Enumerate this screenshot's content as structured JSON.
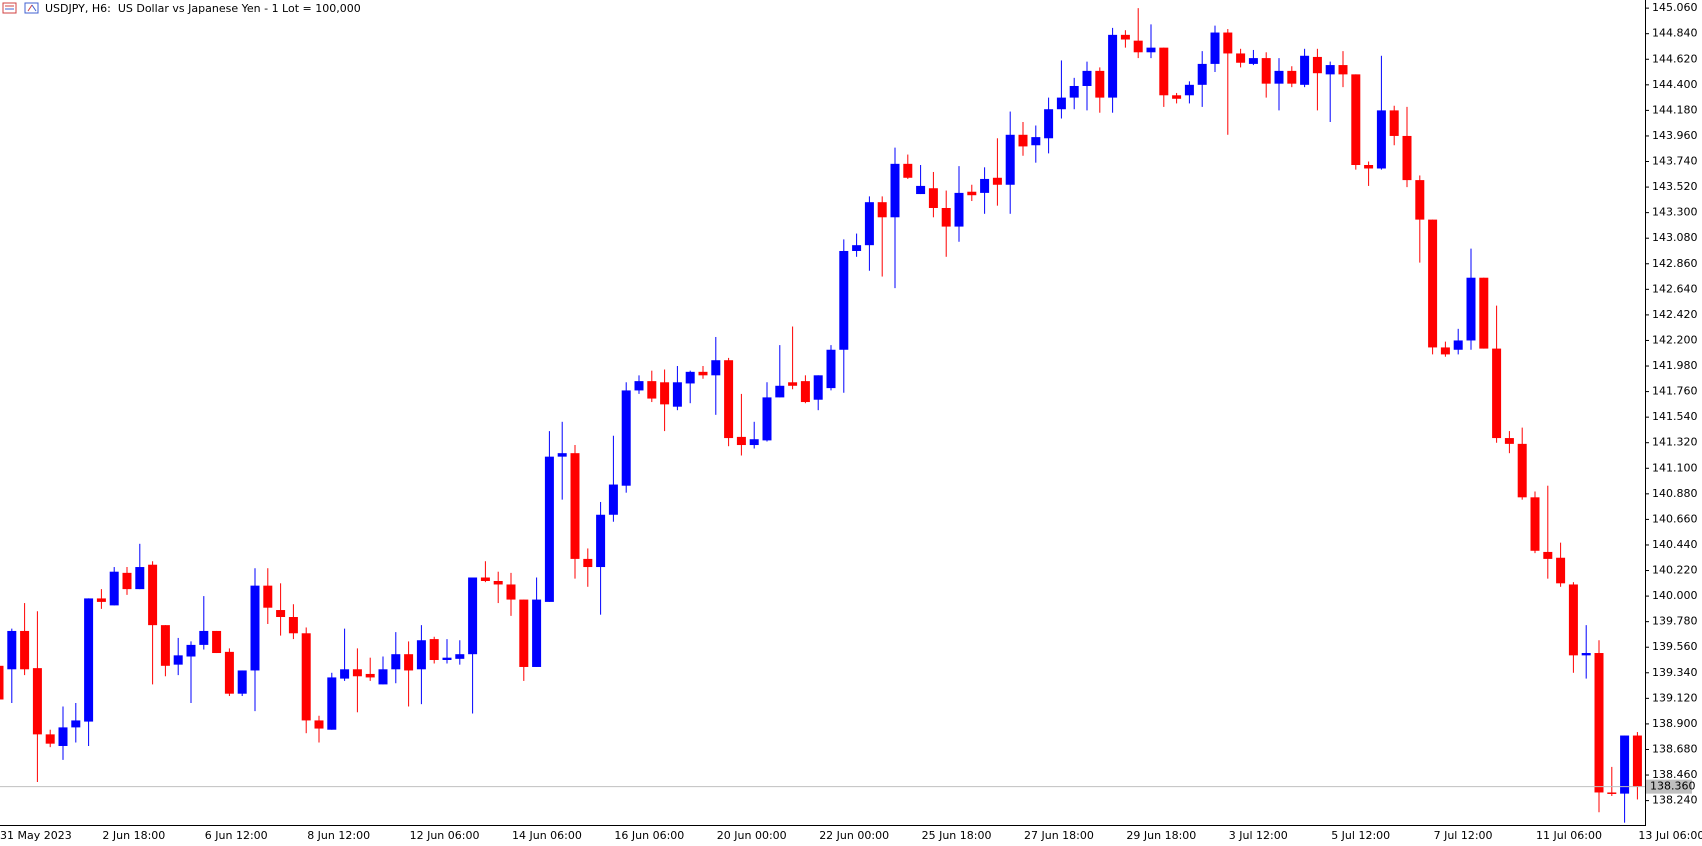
{
  "chart_data": {
    "type": "candlestick",
    "title": "USDJPY, H6:  US Dollar vs Japanese Yen - 1 Lot = 100,000",
    "up_color": "#0000ff",
    "down_color": "#ff0000",
    "categories": [
      "31 May 2023",
      null,
      null,
      null,
      null,
      null,
      null,
      null,
      "2 Jun 18:00",
      null,
      null,
      null,
      null,
      null,
      null,
      null,
      "6 Jun 12:00",
      null,
      null,
      null,
      null,
      null,
      null,
      null,
      "8 Jun 12:00",
      null,
      null,
      null,
      null,
      null,
      null,
      null,
      "12 Jun 06:00",
      null,
      null,
      null,
      null,
      null,
      null,
      null,
      "14 Jun 06:00",
      null,
      null,
      null,
      null,
      null,
      null,
      null,
      "16 Jun 06:00",
      null,
      null,
      null,
      null,
      null,
      null,
      null,
      "20 Jun 00:00",
      null,
      null,
      null,
      null,
      null,
      null,
      null,
      "22 Jun 00:00",
      null,
      null,
      null,
      null,
      null,
      null,
      null,
      "25 Jun 18:00",
      null,
      null,
      null,
      null,
      null,
      null,
      null,
      "27 Jun 18:00",
      null,
      null,
      null,
      null,
      null,
      null,
      null,
      "29 Jun 18:00",
      null,
      null,
      null,
      null,
      null,
      null,
      null,
      "3 Jul 12:00",
      null,
      null,
      null,
      null,
      null,
      null,
      null,
      "5 Jul 12:00",
      null,
      null,
      null,
      null,
      null,
      null,
      null,
      "7 Jul 12:00",
      null,
      null,
      null,
      null,
      null,
      null,
      null,
      "11 Jul 06:00",
      null,
      null,
      null,
      null,
      null,
      null,
      null,
      "13 Jul 06:00"
    ],
    "open": [
      139.4,
      139.37,
      139.7,
      139.38,
      138.81,
      138.71,
      138.87,
      138.92,
      139.98,
      139.92,
      140.2,
      140.06,
      140.27,
      139.75,
      139.41,
      139.48,
      139.58,
      139.7,
      139.52,
      139.16,
      139.36,
      140.09,
      139.88,
      139.82,
      139.68,
      138.93,
      138.85,
      139.29,
      139.37,
      139.33,
      139.24,
      139.37,
      139.5,
      139.37,
      139.63,
      139.45,
      139.46,
      139.5,
      140.16,
      140.13,
      140.1,
      139.97,
      139.39,
      139.95,
      141.2,
      141.23,
      140.32,
      140.25,
      140.7,
      140.95,
      141.77,
      141.85,
      141.84,
      141.63,
      141.83,
      141.93,
      141.9,
      142.03,
      141.37,
      141.3,
      141.34,
      141.71,
      141.84,
      141.85,
      141.69,
      141.79,
      142.12,
      142.97,
      143.02,
      143.39,
      143.26,
      143.72,
      143.46,
      143.51,
      143.34,
      143.18,
      143.48,
      143.47,
      143.6,
      143.54,
      143.97,
      143.88,
      143.94,
      144.19,
      144.29,
      144.39,
      144.52,
      144.29,
      144.83,
      144.78,
      144.68,
      144.72,
      144.31,
      144.31,
      144.4,
      144.58,
      144.85,
      144.67,
      144.58,
      144.63,
      144.41,
      144.52,
      144.4,
      144.64,
      144.49,
      144.57,
      144.49,
      143.71,
      143.68,
      144.18,
      143.96,
      143.58,
      143.24,
      142.14,
      142.12,
      142.2,
      142.74,
      142.13,
      141.36,
      141.31,
      140.85,
      140.38,
      140.33,
      140.1,
      139.49,
      139.51,
      138.31,
      138.3,
      138.8
    ],
    "high": [
      139.4,
      139.72,
      139.94,
      139.87,
      138.85,
      139.05,
      139.08,
      139.98,
      140.06,
      140.25,
      140.25,
      140.45,
      140.3,
      139.75,
      139.64,
      139.61,
      140.0,
      139.7,
      139.55,
      139.36,
      140.24,
      140.24,
      140.11,
      139.93,
      139.73,
      138.97,
      139.34,
      139.72,
      139.55,
      139.47,
      139.48,
      139.69,
      139.61,
      139.75,
      139.65,
      139.63,
      139.62,
      140.16,
      140.3,
      140.21,
      140.2,
      139.97,
      140.16,
      141.42,
      141.5,
      141.3,
      140.41,
      140.81,
      141.38,
      141.84,
      141.9,
      141.94,
      141.95,
      141.98,
      141.94,
      141.98,
      142.23,
      142.05,
      141.74,
      141.5,
      141.84,
      142.16,
      142.32,
      141.9,
      141.9,
      142.16,
      143.07,
      143.12,
      143.44,
      143.44,
      143.86,
      143.8,
      143.71,
      143.65,
      143.49,
      143.7,
      143.54,
      143.69,
      143.94,
      144.17,
      144.08,
      144.05,
      144.29,
      144.61,
      144.46,
      144.6,
      144.55,
      144.89,
      144.87,
      145.06,
      144.92,
      144.72,
      144.33,
      144.43,
      144.69,
      144.91,
      144.88,
      144.71,
      144.7,
      144.68,
      144.63,
      144.56,
      144.71,
      144.71,
      144.6,
      144.69,
      144.49,
      143.74,
      144.65,
      144.22,
      144.21,
      143.62,
      143.24,
      142.19,
      142.3,
      142.99,
      142.74,
      142.5,
      141.42,
      141.45,
      140.9,
      140.95,
      140.46,
      140.12,
      139.75,
      139.62,
      138.53,
      138.8,
      138.83
    ],
    "low": [
      139.11,
      139.08,
      139.32,
      138.4,
      138.7,
      138.59,
      138.74,
      138.71,
      139.89,
      139.92,
      140.01,
      140.06,
      139.24,
      139.31,
      139.32,
      139.08,
      139.54,
      139.51,
      139.14,
      139.14,
      139.01,
      139.76,
      139.66,
      139.63,
      138.82,
      138.74,
      138.85,
      139.27,
      139.0,
      139.27,
      139.24,
      139.25,
      139.05,
      139.07,
      139.42,
      139.42,
      139.41,
      138.99,
      140.12,
      139.94,
      139.83,
      139.27,
      139.39,
      139.95,
      140.83,
      140.15,
      140.08,
      139.84,
      140.64,
      140.89,
      141.74,
      141.67,
      141.42,
      141.6,
      141.66,
      141.87,
      141.56,
      141.29,
      141.21,
      141.27,
      141.33,
      141.71,
      141.78,
      141.66,
      141.6,
      141.77,
      141.75,
      142.92,
      142.8,
      142.75,
      142.65,
      143.59,
      143.46,
      143.26,
      142.92,
      143.05,
      143.4,
      143.29,
      143.36,
      143.29,
      143.79,
      143.73,
      143.81,
      144.11,
      144.19,
      144.18,
      144.16,
      144.16,
      144.72,
      144.63,
      144.63,
      144.21,
      144.24,
      144.24,
      144.21,
      144.51,
      143.97,
      144.55,
      144.57,
      144.29,
      144.18,
      144.38,
      144.38,
      144.18,
      144.08,
      144.38,
      143.67,
      143.53,
      143.67,
      143.88,
      143.52,
      142.87,
      142.08,
      142.06,
      142.08,
      142.12,
      142.13,
      141.32,
      141.23,
      140.83,
      140.37,
      140.15,
      140.08,
      139.34,
      139.29,
      138.14,
      138.28,
      138.05,
      138.25
    ],
    "close": [
      139.11,
      139.7,
      139.37,
      138.81,
      138.73,
      138.87,
      138.93,
      139.98,
      139.95,
      140.21,
      140.06,
      140.25,
      139.75,
      139.4,
      139.49,
      139.58,
      139.7,
      139.51,
      139.16,
      139.36,
      140.09,
      139.9,
      139.82,
      139.68,
      138.93,
      138.86,
      139.3,
      139.37,
      139.31,
      139.3,
      139.37,
      139.5,
      139.36,
      139.62,
      139.45,
      139.47,
      139.5,
      140.16,
      140.13,
      140.1,
      139.97,
      139.39,
      139.97,
      141.2,
      141.23,
      140.32,
      140.25,
      140.7,
      140.96,
      141.77,
      141.85,
      141.7,
      141.65,
      141.84,
      141.93,
      141.9,
      142.03,
      141.36,
      141.3,
      141.35,
      141.71,
      141.81,
      141.81,
      141.67,
      141.9,
      142.12,
      142.97,
      143.02,
      143.39,
      143.26,
      143.72,
      143.6,
      143.53,
      143.34,
      143.18,
      143.47,
      143.45,
      143.59,
      143.54,
      143.97,
      143.87,
      143.95,
      144.19,
      144.29,
      144.39,
      144.52,
      144.29,
      144.83,
      144.79,
      144.68,
      144.72,
      144.31,
      144.28,
      144.4,
      144.58,
      144.85,
      144.67,
      144.59,
      144.63,
      144.41,
      144.52,
      144.41,
      144.65,
      144.5,
      144.57,
      144.49,
      143.71,
      143.68,
      144.18,
      143.96,
      143.58,
      143.24,
      142.14,
      142.08,
      142.2,
      142.74,
      142.13,
      141.36,
      141.31,
      140.85,
      140.39,
      140.32,
      140.11,
      139.49,
      139.51,
      138.31,
      138.3,
      138.8,
      138.36
    ],
    "current_price": {
      "value": 138.36,
      "label": "138.360"
    },
    "ylim": [
      138.03,
      145.13
    ],
    "yticks": [
      {
        "value": 138.24,
        "label": "138.240"
      },
      {
        "value": 138.46,
        "label": "138.460"
      },
      {
        "value": 138.68,
        "label": "138.680"
      },
      {
        "value": 138.9,
        "label": "138.900"
      },
      {
        "value": 139.12,
        "label": "139.120"
      },
      {
        "value": 139.34,
        "label": "139.340"
      },
      {
        "value": 139.56,
        "label": "139.560"
      },
      {
        "value": 139.78,
        "label": "139.780"
      },
      {
        "value": 140.0,
        "label": "140.000"
      },
      {
        "value": 140.22,
        "label": "140.220"
      },
      {
        "value": 140.44,
        "label": "140.440"
      },
      {
        "value": 140.66,
        "label": "140.660"
      },
      {
        "value": 140.88,
        "label": "140.880"
      },
      {
        "value": 141.1,
        "label": "141.100"
      },
      {
        "value": 141.32,
        "label": "141.320"
      },
      {
        "value": 141.54,
        "label": "141.540"
      },
      {
        "value": 141.76,
        "label": "141.760"
      },
      {
        "value": 141.98,
        "label": "141.980"
      },
      {
        "value": 142.2,
        "label": "142.200"
      },
      {
        "value": 142.42,
        "label": "142.420"
      },
      {
        "value": 142.64,
        "label": "142.640"
      },
      {
        "value": 142.86,
        "label": "142.860"
      },
      {
        "value": 143.08,
        "label": "143.080"
      },
      {
        "value": 143.3,
        "label": "143.300"
      },
      {
        "value": 143.52,
        "label": "143.520"
      },
      {
        "value": 143.74,
        "label": "143.740"
      },
      {
        "value": 143.96,
        "label": "143.960"
      },
      {
        "value": 144.18,
        "label": "144.180"
      },
      {
        "value": 144.4,
        "label": "144.400"
      },
      {
        "value": 144.62,
        "label": "144.620"
      },
      {
        "value": 144.84,
        "label": "144.840"
      },
      {
        "value": 145.06,
        "label": "145.060"
      }
    ],
    "grid": false
  }
}
